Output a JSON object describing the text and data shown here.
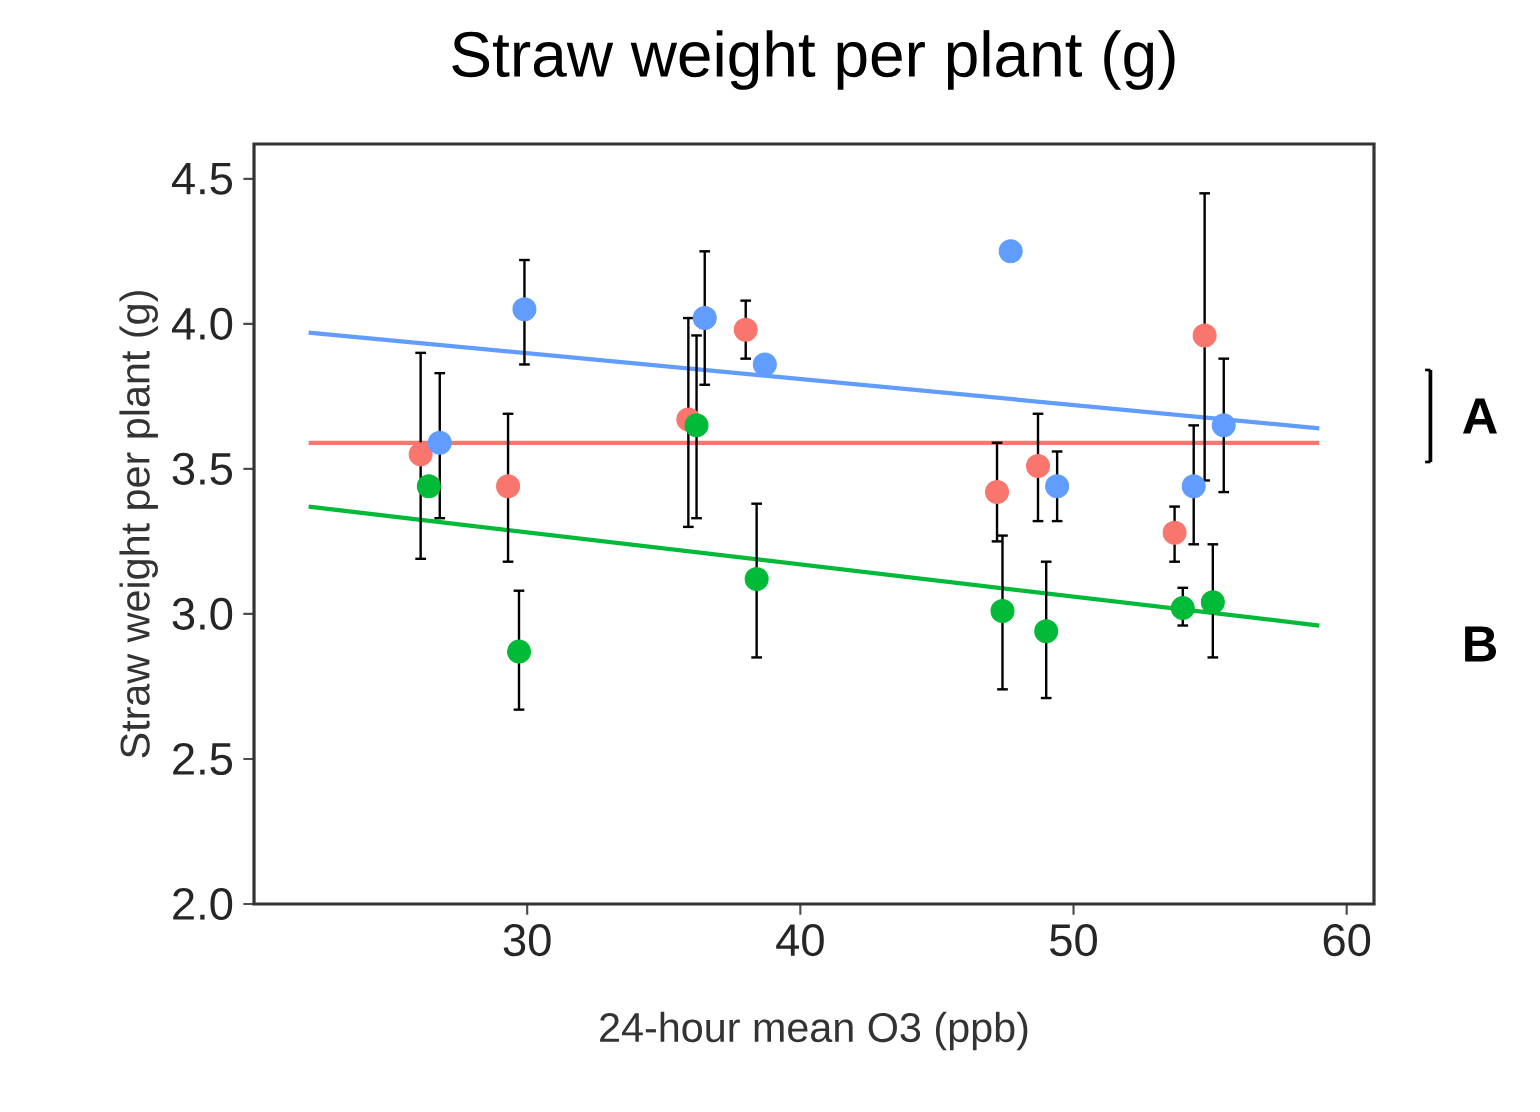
{
  "chart_data": {
    "type": "scatter",
    "title": "Straw weight per plant (g)",
    "xlabel": "24-hour mean O3 (ppb)",
    "ylabel": "Straw weight per plant (g)",
    "xlim": [
      20,
      61
    ],
    "ylim": [
      2.0,
      4.62
    ],
    "xticks": [
      30,
      40,
      50,
      60
    ],
    "yticks": [
      {
        "value": 2.0,
        "label": "2.0"
      },
      {
        "value": 2.5,
        "label": "2.5"
      },
      {
        "value": 3.0,
        "label": "3.0"
      },
      {
        "value": 3.5,
        "label": "3.5"
      },
      {
        "value": 4.0,
        "label": "4.0"
      },
      {
        "value": 4.5,
        "label": "4.5"
      }
    ],
    "grid": false,
    "annotations": [
      "A",
      "B"
    ],
    "series": [
      {
        "type": "line",
        "marker": "none",
        "color": "#619cff",
        "x": [
          22,
          59
        ],
        "values": [
          3.97,
          3.64
        ]
      },
      {
        "type": "line",
        "marker": "none",
        "color": "#f8766d",
        "x": [
          22,
          59
        ],
        "values": [
          3.59,
          3.59
        ]
      },
      {
        "type": "line",
        "marker": "none",
        "color": "#00ba38",
        "x": [
          22,
          59
        ],
        "values": [
          3.37,
          2.96
        ]
      },
      {
        "marker": "circle",
        "color": "#f8766d",
        "x": [
          26.1,
          29.3,
          35.9,
          38.0,
          47.2,
          48.7,
          53.7,
          54.8
        ],
        "values": [
          3.55,
          3.44,
          3.67,
          3.98,
          3.42,
          3.51,
          3.28,
          3.96
        ],
        "errors": [
          [
            3.19,
            3.9
          ],
          [
            3.18,
            3.69
          ],
          [
            3.3,
            4.02
          ],
          [
            3.88,
            4.08
          ],
          [
            3.25,
            3.59
          ],
          [
            3.32,
            3.69
          ],
          [
            3.18,
            3.37
          ],
          [
            3.46,
            4.45
          ]
        ]
      },
      {
        "marker": "circle",
        "color": "#619cff",
        "x": [
          26.8,
          29.9,
          36.5,
          38.7,
          47.7,
          49.4,
          54.4,
          55.5
        ],
        "values": [
          3.59,
          4.05,
          4.02,
          3.86,
          4.25,
          3.44,
          3.44,
          3.65
        ],
        "errors": [
          [
            3.33,
            3.83
          ],
          [
            3.86,
            4.22
          ],
          [
            3.79,
            4.25
          ],
          null,
          null,
          [
            3.32,
            3.56
          ],
          [
            3.24,
            3.65
          ],
          [
            3.42,
            3.88
          ]
        ]
      },
      {
        "marker": "circle",
        "color": "#00ba38",
        "x": [
          26.4,
          29.7,
          36.2,
          38.4,
          47.4,
          49.0,
          54.0,
          55.1
        ],
        "values": [
          3.44,
          2.87,
          3.65,
          3.12,
          3.01,
          2.94,
          3.02,
          3.04
        ],
        "errors": [
          null,
          [
            2.67,
            3.08
          ],
          [
            3.33,
            3.96
          ],
          [
            2.85,
            3.38
          ],
          [
            2.74,
            3.27
          ],
          [
            2.71,
            3.18
          ],
          [
            2.96,
            3.09
          ],
          [
            2.85,
            3.24
          ]
        ]
      }
    ]
  }
}
